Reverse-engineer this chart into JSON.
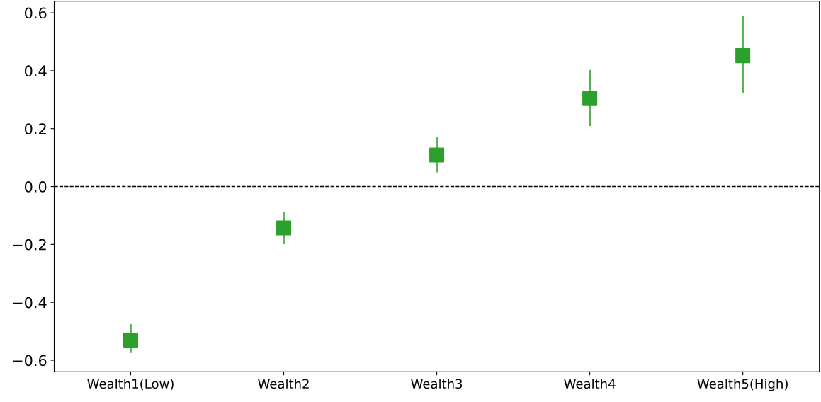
{
  "chart_data": {
    "type": "scatter",
    "categories": [
      "Wealth1(Low)",
      "Wealth2",
      "Wealth3",
      "Wealth4",
      "Wealth5(High)"
    ],
    "values": [
      -0.53,
      -0.143,
      0.109,
      0.304,
      0.452
    ],
    "errors": [
      [
        -0.575,
        -0.475
      ],
      [
        -0.199,
        -0.087
      ],
      [
        0.049,
        0.17
      ],
      [
        0.209,
        0.403
      ],
      [
        0.323,
        0.588
      ]
    ],
    "color": "#2ca02c",
    "marker": "square",
    "ylim": [
      -0.64,
      0.64
    ],
    "yticks": [
      {
        "value": -0.6,
        "label": "−0.6"
      },
      {
        "value": -0.4,
        "label": "−0.4"
      },
      {
        "value": -0.2,
        "label": "−0.2"
      },
      {
        "value": 0,
        "label": "0.0"
      },
      0.2,
      0.4,
      0.6
    ],
    "ref_lines": [
      {
        "axis": "y",
        "value": 0,
        "color": "#000000",
        "line_style": "dashed"
      }
    ],
    "grid": false,
    "legend": false
  }
}
